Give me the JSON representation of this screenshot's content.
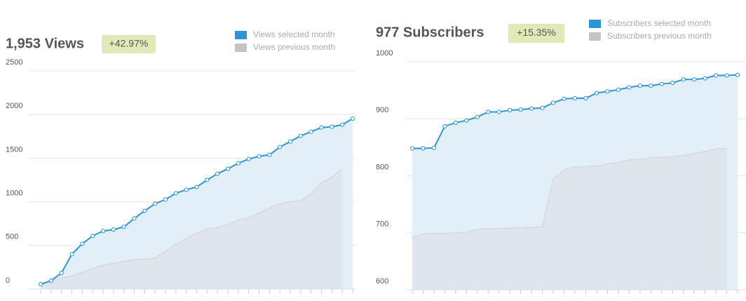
{
  "chart_data": [
    {
      "type": "area-line",
      "title": "1,953 Views",
      "badge": "+42.97%",
      "categories": [
        null,
        null,
        null,
        null,
        null,
        null,
        null,
        null,
        null,
        null,
        null,
        null,
        null,
        null,
        null,
        null,
        null,
        null,
        null,
        null,
        null,
        null,
        null,
        null,
        null,
        null,
        null,
        null,
        null,
        null,
        null
      ],
      "series": [
        {
          "name": "Views selected month",
          "color": "#2b95d6",
          "values": [
            56,
            96,
            184,
            400,
            520,
            609,
            665,
            681,
            713,
            809,
            897,
            978,
            1026,
            1098,
            1138,
            1170,
            1250,
            1322,
            1378,
            1442,
            1490,
            1522,
            1538,
            1627,
            1691,
            1755,
            1803,
            1851,
            1859,
            1883,
            1953
          ]
        },
        {
          "name": "Views previous month",
          "color": "#c4c4c4",
          "values": [
            56,
            96,
            128,
            152,
            192,
            240,
            272,
            296,
            320,
            337,
            345,
            353,
            433,
            513,
            577,
            641,
            689,
            705,
            737,
            793,
            817,
            873,
            929,
            978,
            1002,
            1018,
            1090,
            1218,
            1282,
            1378,
            null
          ]
        }
      ],
      "ylim": [
        0,
        2500
      ],
      "yticks": [
        0,
        500,
        1000,
        1500,
        2000,
        2500
      ],
      "grid": true
    },
    {
      "type": "area-line",
      "title": "977 Subscribers",
      "badge": "+15.35%",
      "categories": [
        null,
        null,
        null,
        null,
        null,
        null,
        null,
        null,
        null,
        null,
        null,
        null,
        null,
        null,
        null,
        null,
        null,
        null,
        null,
        null,
        null,
        null,
        null,
        null,
        null,
        null,
        null,
        null,
        null,
        null,
        null
      ],
      "series": [
        {
          "name": "Subscribers selected month",
          "color": "#2b95d6",
          "values": [
            848,
            848,
            849,
            887,
            893,
            897,
            903,
            912,
            912,
            915,
            916,
            918,
            919,
            928,
            935,
            936,
            936,
            945,
            948,
            951,
            955,
            958,
            958,
            961,
            963,
            969,
            969,
            971,
            976,
            976,
            977
          ]
        },
        {
          "name": "Subscribers previous month",
          "color": "#c4c4c4",
          "values": [
            692,
            698,
            699,
            699,
            700,
            701,
            706,
            707,
            708,
            708,
            709,
            709,
            711,
            795,
            810,
            816,
            816,
            817,
            821,
            823,
            828,
            829,
            832,
            833,
            833,
            836,
            839,
            843,
            847,
            848,
            null
          ]
        }
      ],
      "ylim": [
        600,
        1000
      ],
      "yticks": [
        600,
        700,
        800,
        900,
        1000
      ],
      "grid": true
    }
  ]
}
